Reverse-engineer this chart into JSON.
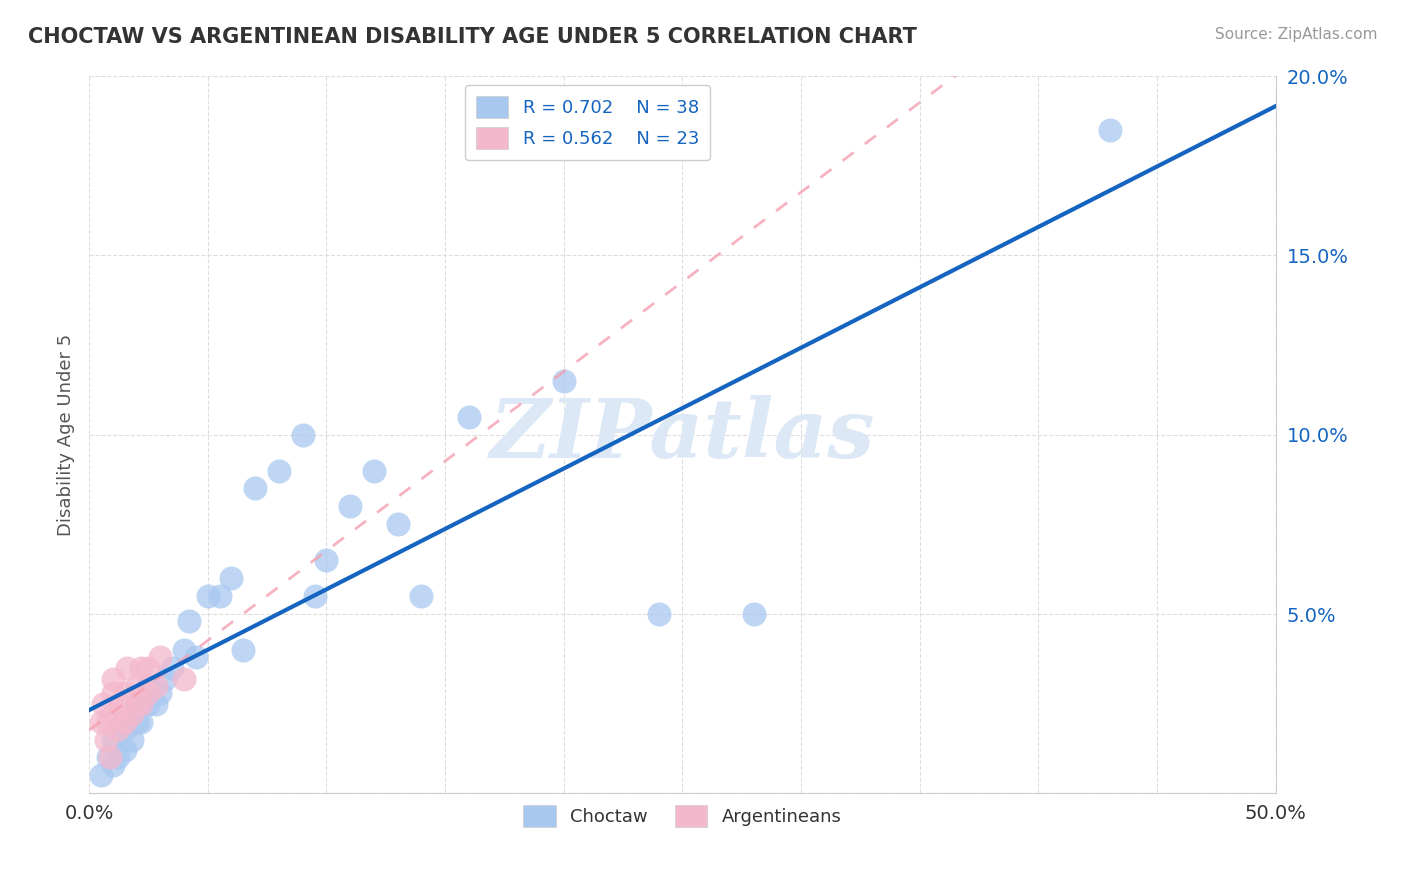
{
  "title": "CHOCTAW VS ARGENTINEAN DISABILITY AGE UNDER 5 CORRELATION CHART",
  "source": "Source: ZipAtlas.com",
  "ylabel": "Disability Age Under 5",
  "xlim": [
    0.0,
    0.5
  ],
  "ylim": [
    0.0,
    0.2
  ],
  "xticks": [
    0.0,
    0.05,
    0.1,
    0.15,
    0.2,
    0.25,
    0.3,
    0.35,
    0.4,
    0.45,
    0.5
  ],
  "yticks": [
    0.0,
    0.05,
    0.1,
    0.15,
    0.2
  ],
  "choctaw_R": 0.702,
  "choctaw_N": 38,
  "argentinean_R": 0.562,
  "argentinean_N": 23,
  "choctaw_color": "#a8c8f0",
  "argentinean_color": "#f4b8cc",
  "choctaw_line_color": "#1565c0",
  "argentinean_line_color": "#f4a0b0",
  "legend_text_color": "#1565c0",
  "ytick_color": "#1565c0",
  "xtick_color": "#333333",
  "watermark_color": "#dce8f5",
  "choctaw_x": [
    0.005,
    0.008,
    0.01,
    0.01,
    0.012,
    0.015,
    0.015,
    0.018,
    0.02,
    0.02,
    0.022,
    0.025,
    0.025,
    0.028,
    0.03,
    0.032,
    0.035,
    0.04,
    0.042,
    0.045,
    0.05,
    0.055,
    0.06,
    0.065,
    0.07,
    0.08,
    0.09,
    0.095,
    0.1,
    0.11,
    0.12,
    0.13,
    0.14,
    0.16,
    0.2,
    0.24,
    0.28,
    0.43
  ],
  "choctaw_y": [
    0.005,
    0.01,
    0.008,
    0.015,
    0.01,
    0.012,
    0.018,
    0.015,
    0.02,
    0.025,
    0.02,
    0.025,
    0.03,
    0.025,
    0.028,
    0.032,
    0.035,
    0.04,
    0.048,
    0.038,
    0.055,
    0.055,
    0.06,
    0.04,
    0.085,
    0.09,
    0.1,
    0.055,
    0.065,
    0.08,
    0.09,
    0.075,
    0.055,
    0.105,
    0.115,
    0.05,
    0.05,
    0.185
  ],
  "argentinean_x": [
    0.005,
    0.006,
    0.007,
    0.008,
    0.009,
    0.01,
    0.01,
    0.01,
    0.012,
    0.013,
    0.015,
    0.015,
    0.016,
    0.018,
    0.02,
    0.02,
    0.022,
    0.022,
    0.025,
    0.025,
    0.028,
    0.03,
    0.04
  ],
  "argentinean_y": [
    0.02,
    0.025,
    0.015,
    0.02,
    0.01,
    0.022,
    0.028,
    0.032,
    0.018,
    0.025,
    0.02,
    0.028,
    0.035,
    0.022,
    0.025,
    0.03,
    0.025,
    0.035,
    0.028,
    0.035,
    0.03,
    0.038,
    0.032
  ],
  "choctaw_line_x0": 0.0,
  "choctaw_line_x1": 0.5,
  "argentinean_line_x0": 0.0,
  "argentinean_line_x1": 0.45
}
